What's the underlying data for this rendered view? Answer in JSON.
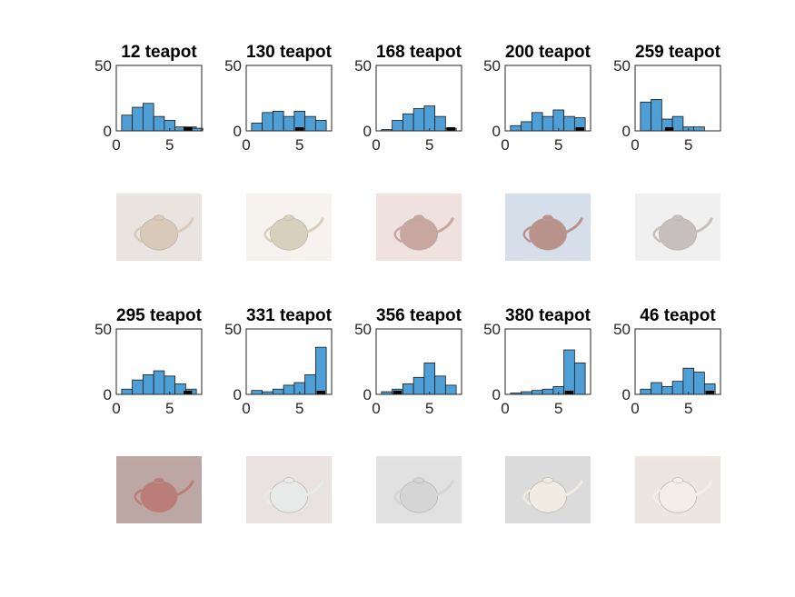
{
  "figure": {
    "background": "#ffffff",
    "bar_color": "#4f9fd7",
    "edge_color": "#1a1a1a",
    "marker_color": "#000000"
  },
  "chart_data": [
    {
      "type": "bar",
      "title": "12 teapot",
      "bin_centers": [
        1,
        2,
        3,
        4,
        5,
        6,
        7,
        7.6
      ],
      "values": [
        12,
        18,
        21,
        11,
        8,
        3,
        3,
        2
      ],
      "marker": [
        6.3,
        7.1
      ],
      "xlim": [
        0,
        8
      ],
      "ylim": [
        0,
        50
      ],
      "xticks": [
        "0",
        "5"
      ],
      "yticks": [
        "0",
        "50"
      ],
      "image": "teapot-photo"
    },
    {
      "type": "bar",
      "title": "130 teapot",
      "bin_centers": [
        1,
        2,
        3,
        4,
        5,
        6,
        7
      ],
      "values": [
        6,
        14,
        15,
        11,
        15,
        11,
        8
      ],
      "marker": [
        4.6,
        5.4
      ],
      "xlim": [
        0,
        8
      ],
      "ylim": [
        0,
        50
      ],
      "xticks": [
        "0",
        "5"
      ],
      "yticks": [
        "0",
        "50"
      ],
      "image": "teapot-photo"
    },
    {
      "type": "bar",
      "title": "168 teapot",
      "bin_centers": [
        1,
        2,
        3,
        4,
        5,
        6,
        7
      ],
      "values": [
        1,
        8,
        13,
        17,
        19,
        11,
        2
      ],
      "marker": [
        6.6,
        7.4
      ],
      "xlim": [
        0,
        8
      ],
      "ylim": [
        0,
        50
      ],
      "xticks": [
        "0",
        "5"
      ],
      "yticks": [
        "0",
        "50"
      ],
      "image": "teapot-photo"
    },
    {
      "type": "bar",
      "title": "200 teapot",
      "bin_centers": [
        1,
        2,
        3,
        4,
        5,
        6,
        7
      ],
      "values": [
        4,
        7,
        14,
        11,
        16,
        11,
        10
      ],
      "marker": [
        6.6,
        7.4
      ],
      "xlim": [
        0,
        8
      ],
      "ylim": [
        0,
        50
      ],
      "xticks": [
        "0",
        "5"
      ],
      "yticks": [
        "0",
        "50"
      ],
      "image": "teapot-photo"
    },
    {
      "type": "bar",
      "title": "259 teapot",
      "bin_centers": [
        1,
        2,
        3,
        4,
        5,
        6
      ],
      "values": [
        22,
        24,
        9,
        11,
        3,
        3
      ],
      "marker": [
        2.8,
        3.6
      ],
      "xlim": [
        0,
        8
      ],
      "ylim": [
        0,
        50
      ],
      "xticks": [
        "0",
        "5"
      ],
      "yticks": [
        "0",
        "50"
      ],
      "image": "teapot-photo"
    },
    {
      "type": "bar",
      "title": "295 teapot",
      "bin_centers": [
        1,
        2,
        3,
        4,
        5,
        6,
        7
      ],
      "values": [
        4,
        11,
        15,
        18,
        14,
        8,
        4
      ],
      "marker": [
        6.3,
        7.1
      ],
      "xlim": [
        0,
        8
      ],
      "ylim": [
        0,
        50
      ],
      "xticks": [
        "0",
        "5"
      ],
      "yticks": [
        "0",
        "50"
      ],
      "image": "teapot-photo"
    },
    {
      "type": "bar",
      "title": "331 teapot",
      "bin_centers": [
        1,
        2,
        3,
        4,
        5,
        6,
        7
      ],
      "values": [
        3,
        2,
        4,
        7,
        9,
        15,
        36
      ],
      "marker": [
        6.6,
        7.4
      ],
      "xlim": [
        0,
        8
      ],
      "ylim": [
        0,
        50
      ],
      "xticks": [
        "0",
        "5"
      ],
      "yticks": [
        "0",
        "50"
      ],
      "image": "teapot-photo"
    },
    {
      "type": "bar",
      "title": "356 teapot",
      "bin_centers": [
        1,
        2,
        3,
        4,
        5,
        6,
        7
      ],
      "values": [
        2,
        4,
        8,
        13,
        24,
        14,
        7
      ],
      "marker": [
        1.6,
        2.4
      ],
      "xlim": [
        0,
        8
      ],
      "ylim": [
        0,
        50
      ],
      "xticks": [
        "0",
        "5"
      ],
      "yticks": [
        "0",
        "50"
      ],
      "image": "teapot-photo"
    },
    {
      "type": "bar",
      "title": "380 teapot",
      "bin_centers": [
        1,
        2,
        3,
        4,
        5,
        6,
        7
      ],
      "values": [
        1,
        2,
        3,
        4,
        6,
        34,
        24
      ],
      "marker": [
        5.6,
        6.4
      ],
      "xlim": [
        0,
        8
      ],
      "ylim": [
        0,
        50
      ],
      "xticks": [
        "0",
        "5"
      ],
      "yticks": [
        "0",
        "50"
      ],
      "image": "teapot-photo"
    },
    {
      "type": "bar",
      "title": "46 teapot",
      "bin_centers": [
        1,
        2,
        3,
        4,
        5,
        6,
        7
      ],
      "values": [
        4,
        9,
        6,
        10,
        20,
        17,
        8
      ],
      "marker": [
        6.6,
        7.4
      ],
      "xlim": [
        0,
        8
      ],
      "ylim": [
        0,
        50
      ],
      "xticks": [
        "0",
        "5"
      ],
      "yticks": [
        "0",
        "50"
      ],
      "image": "teapot-photo"
    }
  ]
}
